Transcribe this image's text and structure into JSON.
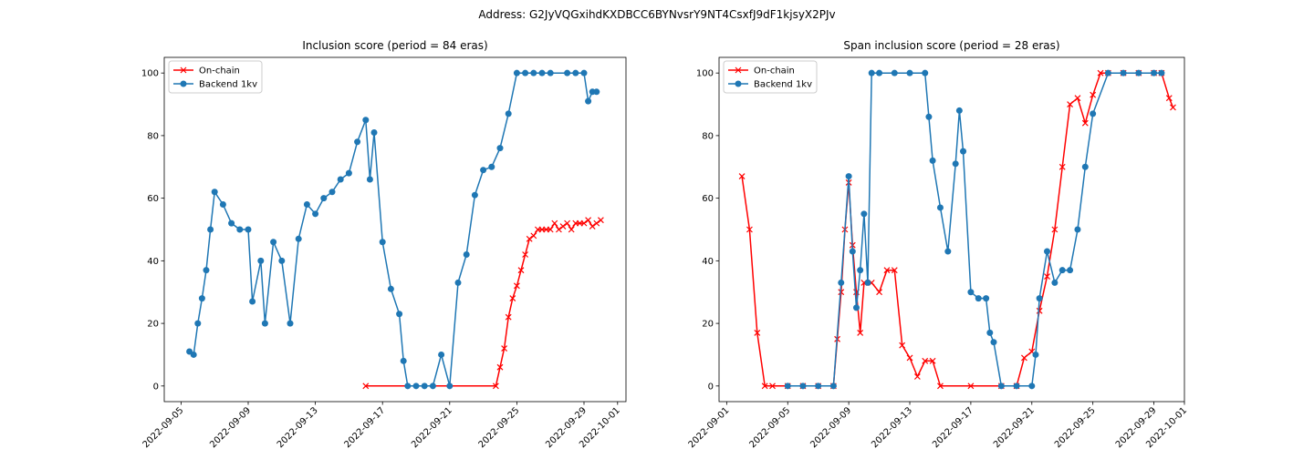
{
  "figure": {
    "suptitle": "Address: G2JyVQGxihdKXDBCC6BYNvsrY9NT4CsxfJ9dF1kjsyX2PJv"
  },
  "colors": {
    "onchain": "#ff0000",
    "backend": "#1f77b4"
  },
  "chart_data": [
    {
      "type": "line",
      "title": "Inclusion score (period = 84 eras)",
      "xlabel": "",
      "ylabel": "",
      "x_is_date": true,
      "xlim": [
        "2022-09-04T00:00",
        "2022-10-01T12:00"
      ],
      "ylim": [
        -5,
        105
      ],
      "xticks": [
        "2022-09-05",
        "2022-09-09",
        "2022-09-13",
        "2022-09-17",
        "2022-09-21",
        "2022-09-25",
        "2022-09-29",
        "2022-10-01"
      ],
      "yticks": [
        0,
        20,
        40,
        60,
        80,
        100
      ],
      "grid": false,
      "legend": {
        "placement": "top-left",
        "entries": [
          "On-chain",
          "Backend 1kv"
        ]
      },
      "series": [
        {
          "name": "On-chain",
          "marker": "x",
          "color": "#ff0000",
          "x": [
            "2022-09-16T00:00",
            "2022-09-23T18:00",
            "2022-09-24T00:00",
            "2022-09-24T06:00",
            "2022-09-24T12:00",
            "2022-09-24T18:00",
            "2022-09-25T00:00",
            "2022-09-25T06:00",
            "2022-09-25T12:00",
            "2022-09-25T18:00",
            "2022-09-26T00:00",
            "2022-09-26T06:00",
            "2022-09-26T12:00",
            "2022-09-26T18:00",
            "2022-09-27T00:00",
            "2022-09-27T06:00",
            "2022-09-27T12:00",
            "2022-09-27T18:00",
            "2022-09-28T00:00",
            "2022-09-28T06:00",
            "2022-09-28T12:00",
            "2022-09-28T18:00",
            "2022-09-29T00:00",
            "2022-09-29T06:00",
            "2022-09-29T12:00",
            "2022-09-29T18:00",
            "2022-09-30T00:00"
          ],
          "y": [
            0,
            0,
            6,
            12,
            22,
            28,
            32,
            37,
            42,
            47,
            48,
            50,
            50,
            50,
            50,
            52,
            50,
            51,
            52,
            50,
            52,
            52,
            52,
            53,
            51,
            52,
            53
          ]
        },
        {
          "name": "Backend 1kv",
          "marker": "o",
          "color": "#1f77b4",
          "x": [
            "2022-09-05T12:00",
            "2022-09-05T18:00",
            "2022-09-06T00:00",
            "2022-09-06T06:00",
            "2022-09-06T12:00",
            "2022-09-06T18:00",
            "2022-09-07T00:00",
            "2022-09-07T12:00",
            "2022-09-08T00:00",
            "2022-09-08T12:00",
            "2022-09-09T00:00",
            "2022-09-09T06:00",
            "2022-09-09T18:00",
            "2022-09-10T00:00",
            "2022-09-10T12:00",
            "2022-09-11T00:00",
            "2022-09-11T12:00",
            "2022-09-12T00:00",
            "2022-09-12T12:00",
            "2022-09-13T00:00",
            "2022-09-13T12:00",
            "2022-09-14T00:00",
            "2022-09-14T12:00",
            "2022-09-15T00:00",
            "2022-09-15T12:00",
            "2022-09-16T00:00",
            "2022-09-16T06:00",
            "2022-09-16T12:00",
            "2022-09-17T00:00",
            "2022-09-17T12:00",
            "2022-09-18T00:00",
            "2022-09-18T06:00",
            "2022-09-18T12:00",
            "2022-09-19T00:00",
            "2022-09-19T12:00",
            "2022-09-20T00:00",
            "2022-09-20T12:00",
            "2022-09-21T00:00",
            "2022-09-21T12:00",
            "2022-09-22T00:00",
            "2022-09-22T12:00",
            "2022-09-23T00:00",
            "2022-09-23T12:00",
            "2022-09-24T00:00",
            "2022-09-24T12:00",
            "2022-09-25T00:00",
            "2022-09-25T12:00",
            "2022-09-26T00:00",
            "2022-09-26T12:00",
            "2022-09-27T00:00",
            "2022-09-28T00:00",
            "2022-09-28T12:00",
            "2022-09-29T00:00",
            "2022-09-29T06:00",
            "2022-09-29T12:00",
            "2022-09-29T18:00"
          ],
          "y": [
            11,
            10,
            20,
            28,
            37,
            50,
            62,
            58,
            52,
            50,
            50,
            27,
            40,
            20,
            46,
            40,
            20,
            47,
            58,
            55,
            60,
            62,
            66,
            68,
            78,
            85,
            66,
            81,
            46,
            31,
            23,
            8,
            0,
            0,
            0,
            0,
            10,
            0,
            33,
            42,
            61,
            69,
            70,
            76,
            87,
            100,
            100,
            100,
            100,
            100,
            100,
            100,
            100,
            91,
            94,
            94
          ]
        }
      ]
    },
    {
      "type": "line",
      "title": "Span inclusion score (period = 28 eras)",
      "xlabel": "",
      "ylabel": "",
      "x_is_date": true,
      "xlim": [
        "2022-08-31T12:00",
        "2022-10-01T00:00"
      ],
      "ylim": [
        -5,
        105
      ],
      "xticks": [
        "2022-09-01",
        "2022-09-05",
        "2022-09-09",
        "2022-09-13",
        "2022-09-17",
        "2022-09-21",
        "2022-09-25",
        "2022-09-29",
        "2022-10-01"
      ],
      "yticks": [
        0,
        20,
        40,
        60,
        80,
        100
      ],
      "grid": false,
      "legend": {
        "placement": "top-left",
        "entries": [
          "On-chain",
          "Backend 1kv"
        ]
      },
      "series": [
        {
          "name": "On-chain",
          "marker": "x",
          "color": "#ff0000",
          "x": [
            "2022-09-02T00:00",
            "2022-09-02T12:00",
            "2022-09-03T00:00",
            "2022-09-03T12:00",
            "2022-09-04T00:00",
            "2022-09-05T00:00",
            "2022-09-06T00:00",
            "2022-09-07T00:00",
            "2022-09-08T00:00",
            "2022-09-08T06:00",
            "2022-09-08T12:00",
            "2022-09-08T18:00",
            "2022-09-09T00:00",
            "2022-09-09T06:00",
            "2022-09-09T12:00",
            "2022-09-09T18:00",
            "2022-09-10T00:00",
            "2022-09-10T12:00",
            "2022-09-11T00:00",
            "2022-09-11T12:00",
            "2022-09-12T00:00",
            "2022-09-12T12:00",
            "2022-09-13T00:00",
            "2022-09-13T12:00",
            "2022-09-14T00:00",
            "2022-09-14T12:00",
            "2022-09-15T00:00",
            "2022-09-17T00:00",
            "2022-09-19T00:00",
            "2022-09-20T00:00",
            "2022-09-20T12:00",
            "2022-09-21T00:00",
            "2022-09-21T12:00",
            "2022-09-22T00:00",
            "2022-09-22T12:00",
            "2022-09-23T00:00",
            "2022-09-23T12:00",
            "2022-09-24T00:00",
            "2022-09-24T12:00",
            "2022-09-25T00:00",
            "2022-09-25T12:00",
            "2022-09-26T00:00",
            "2022-09-27T00:00",
            "2022-09-28T00:00",
            "2022-09-29T00:00",
            "2022-09-29T12:00",
            "2022-09-30T00:00",
            "2022-09-30T06:00"
          ],
          "y": [
            67,
            50,
            17,
            0,
            0,
            0,
            0,
            0,
            0,
            15,
            30,
            50,
            65,
            45,
            30,
            17,
            33,
            33,
            30,
            37,
            37,
            13,
            9,
            3,
            8,
            8,
            0,
            0,
            0,
            0,
            9,
            11,
            24,
            35,
            50,
            70,
            90,
            92,
            84,
            93,
            100,
            100,
            100,
            100,
            100,
            100,
            92,
            89
          ]
        },
        {
          "name": "Backend 1kv",
          "marker": "o",
          "color": "#1f77b4",
          "x": [
            "2022-09-05T00:00",
            "2022-09-06T00:00",
            "2022-09-07T00:00",
            "2022-09-08T00:00",
            "2022-09-08T12:00",
            "2022-09-09T00:00",
            "2022-09-09T06:00",
            "2022-09-09T12:00",
            "2022-09-09T18:00",
            "2022-09-10T00:00",
            "2022-09-10T06:00",
            "2022-09-10T12:00",
            "2022-09-11T00:00",
            "2022-09-12T00:00",
            "2022-09-13T00:00",
            "2022-09-14T00:00",
            "2022-09-14T06:00",
            "2022-09-14T12:00",
            "2022-09-15T00:00",
            "2022-09-15T12:00",
            "2022-09-16T00:00",
            "2022-09-16T06:00",
            "2022-09-16T12:00",
            "2022-09-17T00:00",
            "2022-09-17T12:00",
            "2022-09-18T00:00",
            "2022-09-18T06:00",
            "2022-09-18T12:00",
            "2022-09-19T00:00",
            "2022-09-20T00:00",
            "2022-09-21T00:00",
            "2022-09-21T06:00",
            "2022-09-21T12:00",
            "2022-09-22T00:00",
            "2022-09-22T12:00",
            "2022-09-23T00:00",
            "2022-09-23T12:00",
            "2022-09-24T00:00",
            "2022-09-24T12:00",
            "2022-09-25T00:00",
            "2022-09-26T00:00",
            "2022-09-27T00:00",
            "2022-09-28T00:00",
            "2022-09-29T00:00",
            "2022-09-29T12:00"
          ],
          "y": [
            0,
            0,
            0,
            0,
            33,
            67,
            43,
            25,
            37,
            55,
            33,
            100,
            100,
            100,
            100,
            100,
            86,
            72,
            57,
            43,
            71,
            88,
            75,
            30,
            28,
            28,
            17,
            14,
            0,
            0,
            0,
            10,
            28,
            43,
            33,
            37,
            37,
            50,
            70,
            87,
            100,
            100,
            100,
            100,
            100
          ]
        }
      ]
    }
  ]
}
